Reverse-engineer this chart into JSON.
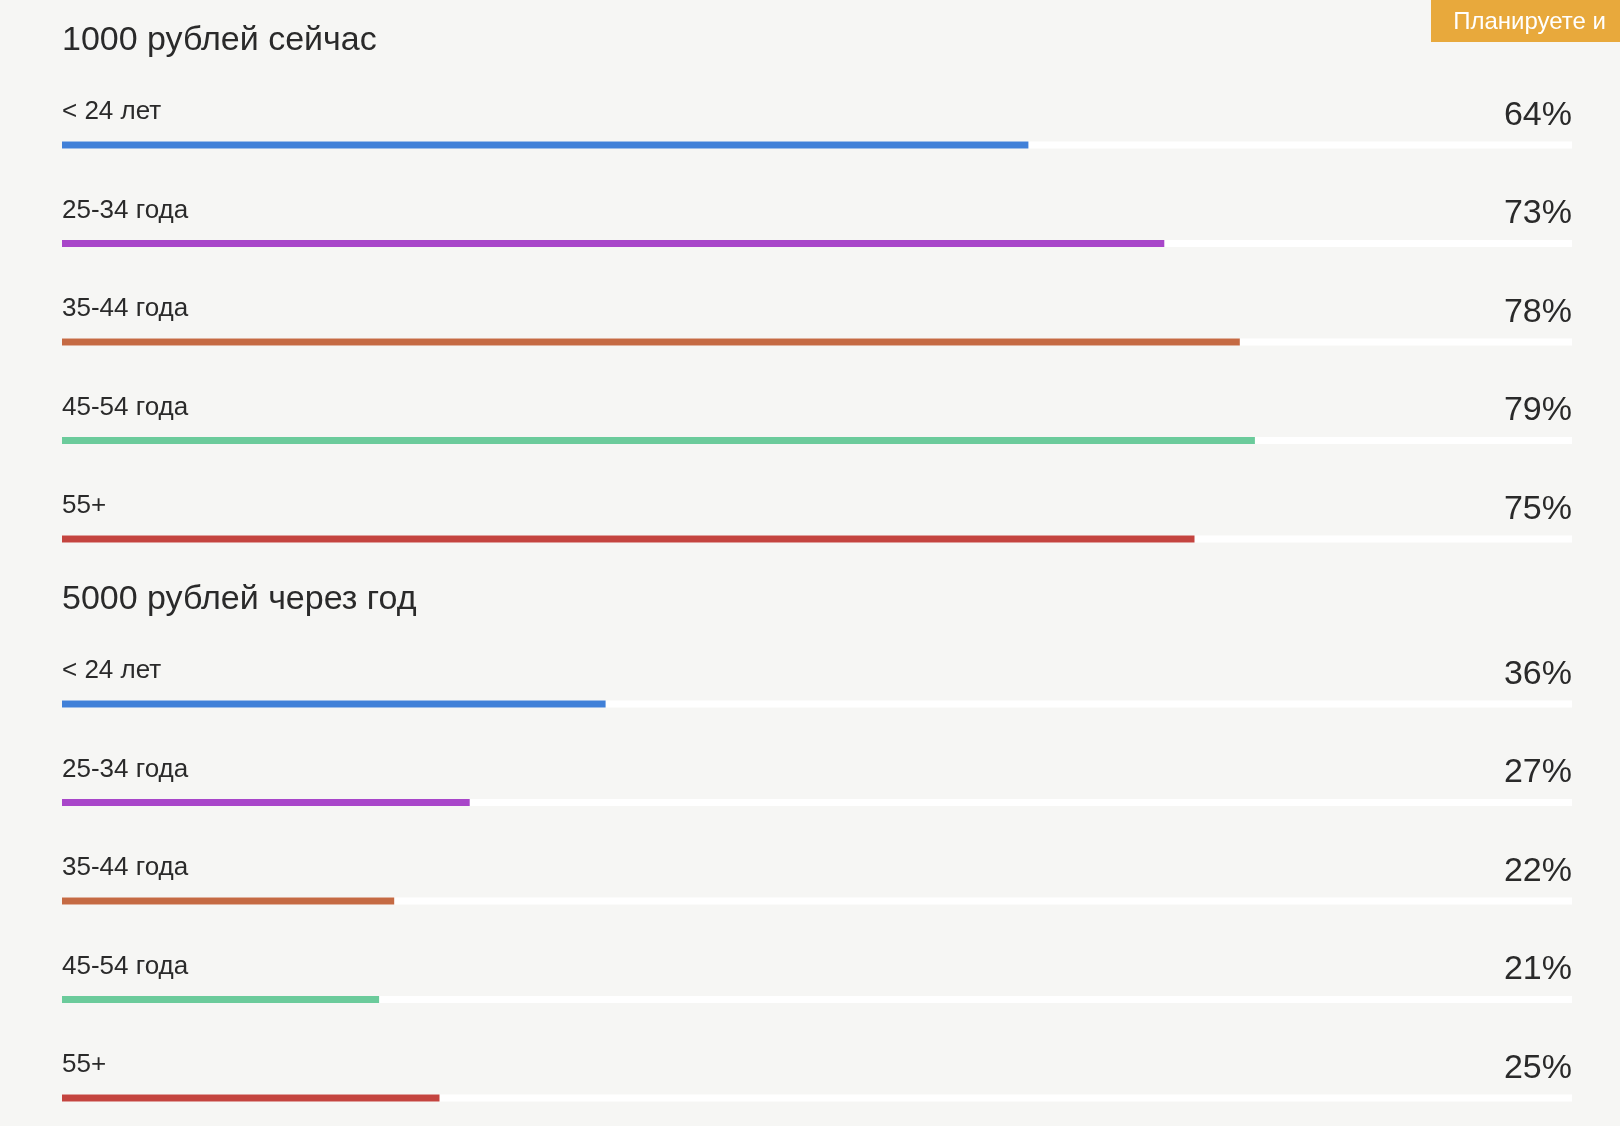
{
  "chart_data": [
    {
      "type": "bar",
      "orientation": "horizontal",
      "title": "1000 рублей сейчас",
      "categories": [
        "< 24 лет",
        "25-34 года",
        "35-44 года",
        "45-54 года",
        "55+"
      ],
      "values": [
        64,
        73,
        78,
        79,
        75
      ],
      "colors": [
        "#4080d8",
        "#a846c9",
        "#c56a43",
        "#6bcb9b",
        "#c4443f"
      ],
      "value_labels": [
        "64%",
        "73%",
        "78%",
        "79%",
        "75%"
      ],
      "xlim": [
        0,
        100
      ],
      "tick_labels": "y",
      "annotations": [
        "Планируете и"
      ]
    },
    {
      "type": "bar",
      "orientation": "horizontal",
      "title": "5000 рублей через год",
      "categories": [
        "< 24 лет",
        "25-34 года",
        "35-44 года",
        "45-54 года",
        "55+"
      ],
      "values": [
        36,
        27,
        22,
        21,
        25
      ],
      "colors": [
        "#4080d8",
        "#a846c9",
        "#c56a43",
        "#6bcb9b",
        "#c4443f"
      ],
      "value_labels": [
        "36%",
        "27%",
        "22%",
        "21%",
        "25%"
      ],
      "xlim": [
        0,
        100
      ],
      "tick_labels": "y"
    }
  ]
}
